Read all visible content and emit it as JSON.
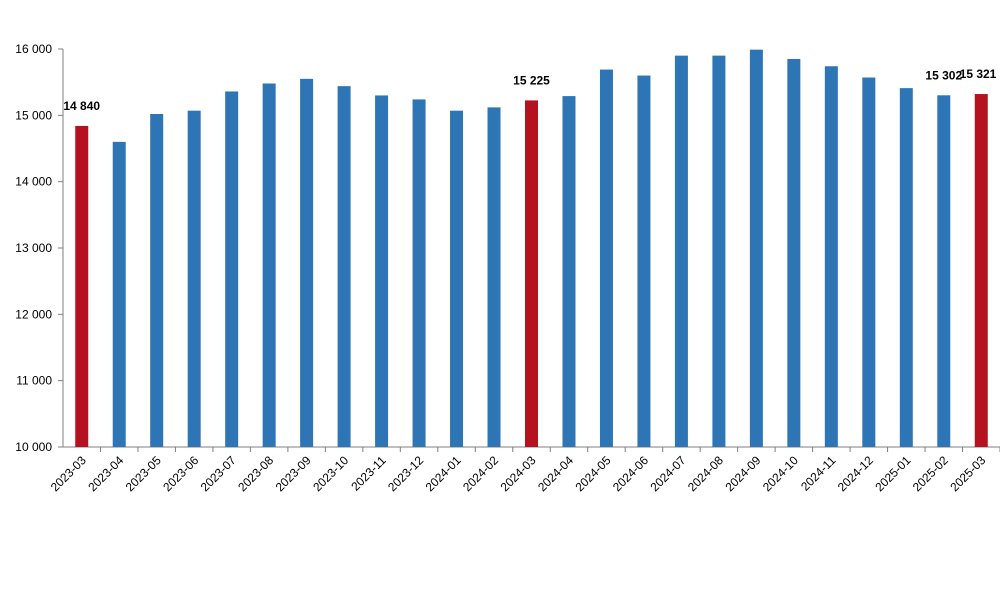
{
  "chart_data": {
    "type": "bar",
    "title": "",
    "xlabel": "",
    "ylabel": "",
    "ylim": [
      10000,
      16000
    ],
    "yticks": [
      10000,
      11000,
      12000,
      13000,
      14000,
      15000,
      16000
    ],
    "ytick_labels": [
      "10 000",
      "11 000",
      "12 000",
      "13 000",
      "14 000",
      "15 000",
      "16 000"
    ],
    "grid": false,
    "legend": "none",
    "categories": [
      "2023-03",
      "2023-04",
      "2023-05",
      "2023-06",
      "2023-07",
      "2023-08",
      "2023-09",
      "2023-10",
      "2023-11",
      "2023-12",
      "2024-01",
      "2024-02",
      "2024-03",
      "2024-04",
      "2024-05",
      "2024-06",
      "2024-07",
      "2024-08",
      "2024-09",
      "2024-10",
      "2024-11",
      "2024-12",
      "2025-01",
      "2025-02",
      "2025-03"
    ],
    "values": [
      14840,
      14600,
      15020,
      15070,
      15360,
      15480,
      15550,
      15440,
      15300,
      15240,
      15070,
      15120,
      15225,
      15290,
      15690,
      15600,
      15900,
      15900,
      15990,
      15850,
      15740,
      15570,
      15410,
      15302,
      15321
    ],
    "highlighted": [
      true,
      false,
      false,
      false,
      false,
      false,
      false,
      false,
      false,
      false,
      false,
      false,
      true,
      false,
      false,
      false,
      false,
      false,
      false,
      false,
      false,
      false,
      false,
      false,
      true
    ],
    "data_labels": [
      {
        "category": "2023-03",
        "text": "14 840"
      },
      {
        "category": "2024-03",
        "text": "15 225"
      },
      {
        "category": "2025-02",
        "text": "15 302"
      },
      {
        "category": "2025-03",
        "text": "15 321"
      }
    ],
    "colors": {
      "bar": "#2e75b6",
      "bar_highlight": "#b3121e",
      "axis": "#7f7f7f"
    }
  }
}
